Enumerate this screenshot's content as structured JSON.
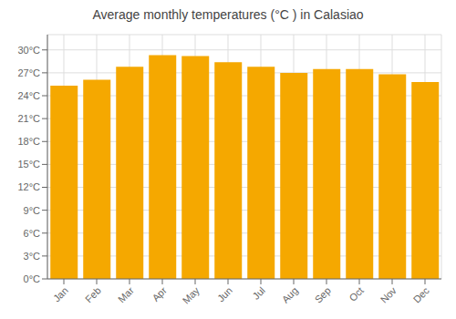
{
  "chart_data": {
    "type": "bar",
    "title": "Average monthly temperatures (°C ) in Calasiao",
    "categories": [
      "Jan",
      "Feb",
      "Mar",
      "Apr",
      "May",
      "Jun",
      "Jul",
      "Aug",
      "Sep",
      "Oct",
      "Nov",
      "Dec"
    ],
    "values": [
      25.3,
      26.1,
      27.8,
      29.3,
      29.2,
      28.4,
      27.8,
      27.0,
      27.5,
      27.5,
      26.8,
      25.8
    ],
    "color": "#F5A800",
    "ylim": [
      0,
      32
    ],
    "yticks": [
      {
        "value": 0,
        "label": "0°C"
      },
      {
        "value": 3,
        "label": "3°C"
      },
      {
        "value": 6,
        "label": "6°C"
      },
      {
        "value": 9,
        "label": "9°C"
      },
      {
        "value": 12,
        "label": "12°C"
      },
      {
        "value": 15,
        "label": "15°C"
      },
      {
        "value": 18,
        "label": "18°C"
      },
      {
        "value": 21,
        "label": "21°C"
      },
      {
        "value": 24,
        "label": "24°C"
      },
      {
        "value": 27,
        "label": "27°C"
      },
      {
        "value": 30,
        "label": "30°C"
      }
    ],
    "grid": true
  }
}
